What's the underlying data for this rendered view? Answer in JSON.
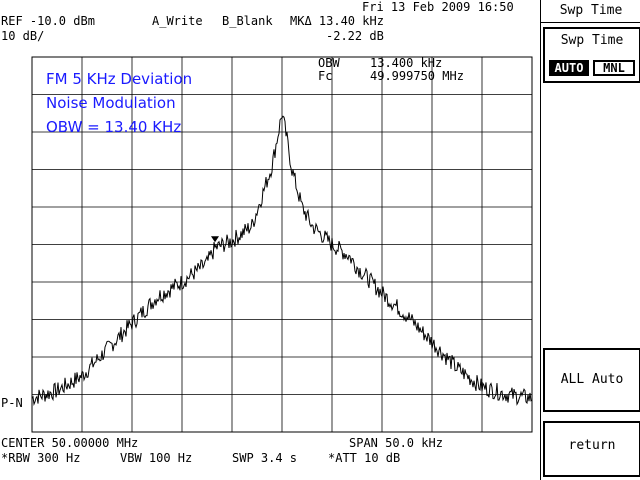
{
  "status": {
    "datetime": "Fri 13 Feb 2009 16:50",
    "ref": "REF -10.0 dBm",
    "scale": "10 dB/",
    "trace_a": "A_Write",
    "trace_b": "B_Blank",
    "marker": "MKΔ 13.40 kHz",
    "marker_level": "-2.22 dB",
    "obw_label": "OBW",
    "obw_value": "13.400 kHz",
    "fc_label": "Fc",
    "fc_value": "49.999750 MHz",
    "detector": "P-N"
  },
  "annotations": [
    "FM 5 KHz Deviation",
    "Noise Modulation",
    "OBW = 13.40 KHz"
  ],
  "footer": {
    "center": "CENTER 50.00000 MHz",
    "span": "SPAN 50.0 kHz",
    "rbw": "*RBW 300 Hz",
    "vbw": "VBW 100 Hz",
    "swp": "SWP 3.4 s",
    "att": "*ATT 10 dB"
  },
  "softkeys": {
    "title": "Swp Time",
    "swp_time": {
      "label": "Swp Time",
      "auto": "AUTO",
      "manual": "MNL",
      "selected": "AUTO"
    },
    "all_auto": "ALL Auto",
    "return": "return"
  },
  "chart_data": {
    "type": "line",
    "x_label": "CENTER 50.00000 MHz",
    "span_khz": 50.0,
    "center_mhz": 50.0,
    "xlim_khz": [
      -25,
      25
    ],
    "ylim_dbm": [
      -110,
      -10
    ],
    "ref_dbm": -10.0,
    "db_per_div": 10,
    "grid": true,
    "series": [
      {
        "x_khz": [
          -25,
          -22.5,
          -20,
          -17.5,
          -15,
          -12.5,
          -10,
          -7.5,
          -6.7,
          -5,
          -3,
          -2,
          -1,
          -0.5,
          0,
          0.5,
          1,
          2,
          3,
          5,
          6.7,
          7.5,
          10,
          12.5,
          15,
          17.5,
          20,
          22.5,
          25
        ],
        "y_dbm": [
          -101,
          -99,
          -95,
          -88,
          -81,
          -74,
          -70,
          -65,
          -61,
          -59,
          -55,
          -47,
          -39,
          -32,
          -25,
          -32,
          -40,
          -50,
          -55,
          -60,
          -63,
          -66,
          -73,
          -79,
          -86,
          -93,
          -98,
          -100,
          -101
        ]
      }
    ],
    "markers": [
      {
        "name": "MKΔ reference",
        "x_khz": -6.7,
        "y_dbm": -61
      }
    ]
  }
}
